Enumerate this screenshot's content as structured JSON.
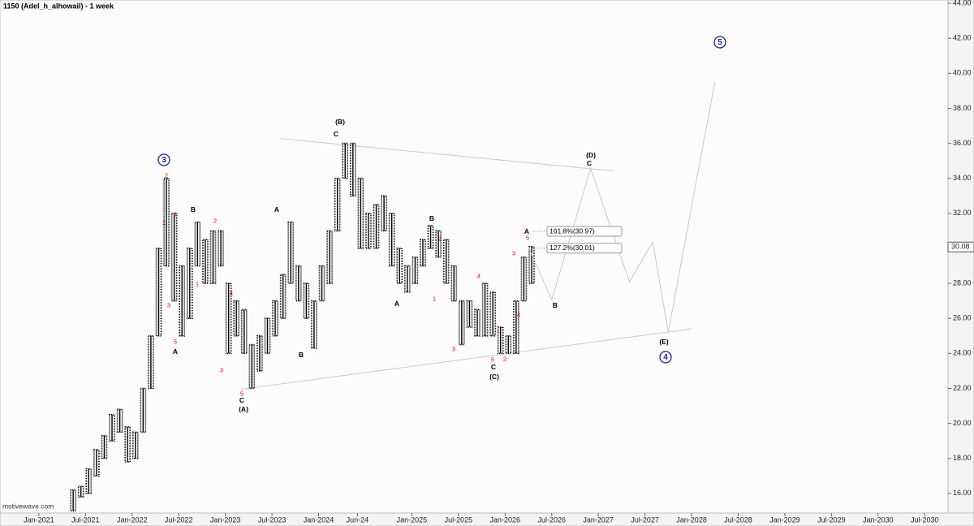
{
  "chart_data": {
    "type": "ohlc",
    "title": "1150 (Adel_h_alhowail) - 1 week",
    "watermark": "motivewave.com",
    "x": [
      "2021-05",
      "2021-06",
      "2021-07",
      "2021-08",
      "2021-09",
      "2021-10",
      "2021-11",
      "2021-12",
      "2022-01",
      "2022-02",
      "2022-03",
      "2022-04",
      "2022-05",
      "2022-06",
      "2022-07",
      "2022-08",
      "2022-09",
      "2022-10",
      "2022-11",
      "2022-12",
      "2023-01",
      "2023-02",
      "2023-03",
      "2023-04",
      "2023-05",
      "2023-06",
      "2023-07",
      "2023-08",
      "2023-09",
      "2023-10",
      "2023-11",
      "2023-12",
      "2024-01",
      "2024-02",
      "2024-03",
      "2024-04",
      "2024-05",
      "2024-06",
      "2024-07",
      "2024-08",
      "2024-09",
      "2024-10",
      "2024-11",
      "2024-12",
      "2025-01",
      "2025-02",
      "2025-03",
      "2025-04",
      "2025-05",
      "2025-06",
      "2025-07",
      "2025-08",
      "2025-09",
      "2025-10",
      "2025-11",
      "2025-12",
      "2026-01",
      "2026-02",
      "2026-03",
      "2026-04"
    ],
    "high": [
      16.2,
      16.4,
      17.4,
      18.5,
      19.3,
      20.5,
      20.8,
      19.8,
      19.5,
      22,
      25,
      30,
      34,
      32,
      29,
      30,
      31.5,
      30.5,
      31,
      31,
      28,
      27,
      26.5,
      24.5,
      25,
      26,
      27,
      28.5,
      31.5,
      29,
      28,
      27,
      29,
      31,
      34,
      36,
      36,
      34,
      32,
      32.5,
      33,
      32,
      30,
      29,
      29.5,
      30.5,
      31.3,
      31,
      30.5,
      29,
      27,
      27,
      26.5,
      28,
      27.5,
      25.5,
      25,
      27,
      29.5,
      30.1
    ],
    "low": [
      15,
      15.8,
      16,
      17,
      18,
      19,
      19.5,
      17.8,
      18,
      19.5,
      22,
      25,
      29,
      27,
      25,
      26,
      29,
      28,
      28,
      29,
      24,
      25,
      24,
      22,
      23,
      24,
      25,
      26,
      28,
      27,
      26,
      24.3,
      27,
      28,
      31,
      34,
      33,
      30,
      30,
      30,
      31,
      29,
      28,
      27.5,
      28,
      29,
      30,
      29.5,
      28,
      27,
      24.5,
      25.5,
      25,
      25,
      25,
      24,
      24,
      24,
      27,
      28
    ],
    "color": "#000000",
    "projection": {
      "x": [
        "2026-04",
        "2026-07",
        "2026-12",
        "2027-05",
        "2027-08",
        "2027-10",
        "2028-04"
      ],
      "values": [
        30.09,
        27.07,
        34.56,
        28.09,
        30.37,
        25.21,
        39.53
      ],
      "color": "#c8c8c8"
    },
    "trendlines": [
      {
        "x": [
          "2023-08",
          "2027-03"
        ],
        "values": [
          36.28,
          34.42
        ]
      },
      {
        "x": [
          "2023-03",
          "2028-01"
        ],
        "values": [
          21.95,
          25.4
        ]
      }
    ],
    "fib_levels": [
      {
        "label": "161.8%(30.97)",
        "value": 30.97
      },
      {
        "label": "127.2%(30.01)",
        "value": 30.01
      }
    ],
    "last_price": 30.08,
    "annotations": [
      "3",
      "5",
      "4",
      "(B)",
      "C",
      "B",
      "A",
      "A",
      "B",
      "C",
      "(A)",
      "A",
      "B",
      "C",
      "(C)",
      "A",
      "B",
      "(D)",
      "C",
      "(E)",
      "2",
      "4",
      "1",
      "3",
      "5",
      "1",
      "2",
      "4",
      "3",
      "5",
      "2",
      "1",
      "3",
      "4",
      "5",
      "1",
      "2",
      "3",
      "4",
      "5"
    ],
    "xlim": [
      "2020-08",
      "2030-10"
    ],
    "xticks": [
      {
        "value": "2021-01",
        "label": "Jan-2021"
      },
      {
        "value": "2021-07",
        "label": "Jul-2021"
      },
      {
        "value": "2022-01",
        "label": "Jan-2022"
      },
      {
        "value": "2022-07",
        "label": "Jul-2022"
      },
      {
        "value": "2023-01",
        "label": "Jan-2023"
      },
      {
        "value": "2023-07",
        "label": "Jul-2023"
      },
      {
        "value": "2024-01",
        "label": "Jan-2024"
      },
      {
        "value": "2024-06",
        "label": "Jun-24"
      },
      {
        "value": "2025-01",
        "label": "Jan-2025"
      },
      {
        "value": "2025-07",
        "label": "Jul-2025"
      },
      {
        "value": "2026-01",
        "label": "Jan-2026"
      },
      {
        "value": "2026-07",
        "label": "Jul-2026"
      },
      {
        "value": "2027-01",
        "label": "Jan-2027"
      },
      {
        "value": "2027-07",
        "label": "Jul-2027"
      },
      {
        "value": "2028-01",
        "label": "Jan-2028"
      },
      {
        "value": "2028-07",
        "label": "Jul-2028"
      },
      {
        "value": "2029-01",
        "label": "Jan-2029"
      },
      {
        "value": "2029-07",
        "label": "Jul-2029"
      },
      {
        "value": "2030-01",
        "label": "Jan-2030"
      },
      {
        "value": "2030-07",
        "label": "Jul-2030"
      }
    ],
    "ylim": [
      14.88,
      44.19
    ],
    "yticks": [
      {
        "value": 16,
        "label": "16.00"
      },
      {
        "value": 18,
        "label": "18.00"
      },
      {
        "value": 20,
        "label": "20.00"
      },
      {
        "value": 22,
        "label": "22.00"
      },
      {
        "value": 24,
        "label": "24.00"
      },
      {
        "value": 26,
        "label": "26.00"
      },
      {
        "value": 28,
        "label": "28.00"
      },
      {
        "value": 30,
        "label": "30.00"
      },
      {
        "value": 32,
        "label": "32.00"
      },
      {
        "value": 34,
        "label": "34.00"
      },
      {
        "value": 36,
        "label": "36.00"
      },
      {
        "value": 38,
        "label": "38.00"
      },
      {
        "value": 40,
        "label": "40.00"
      },
      {
        "value": 42,
        "label": "42.00"
      },
      {
        "value": 44,
        "label": "44.00"
      }
    ]
  }
}
